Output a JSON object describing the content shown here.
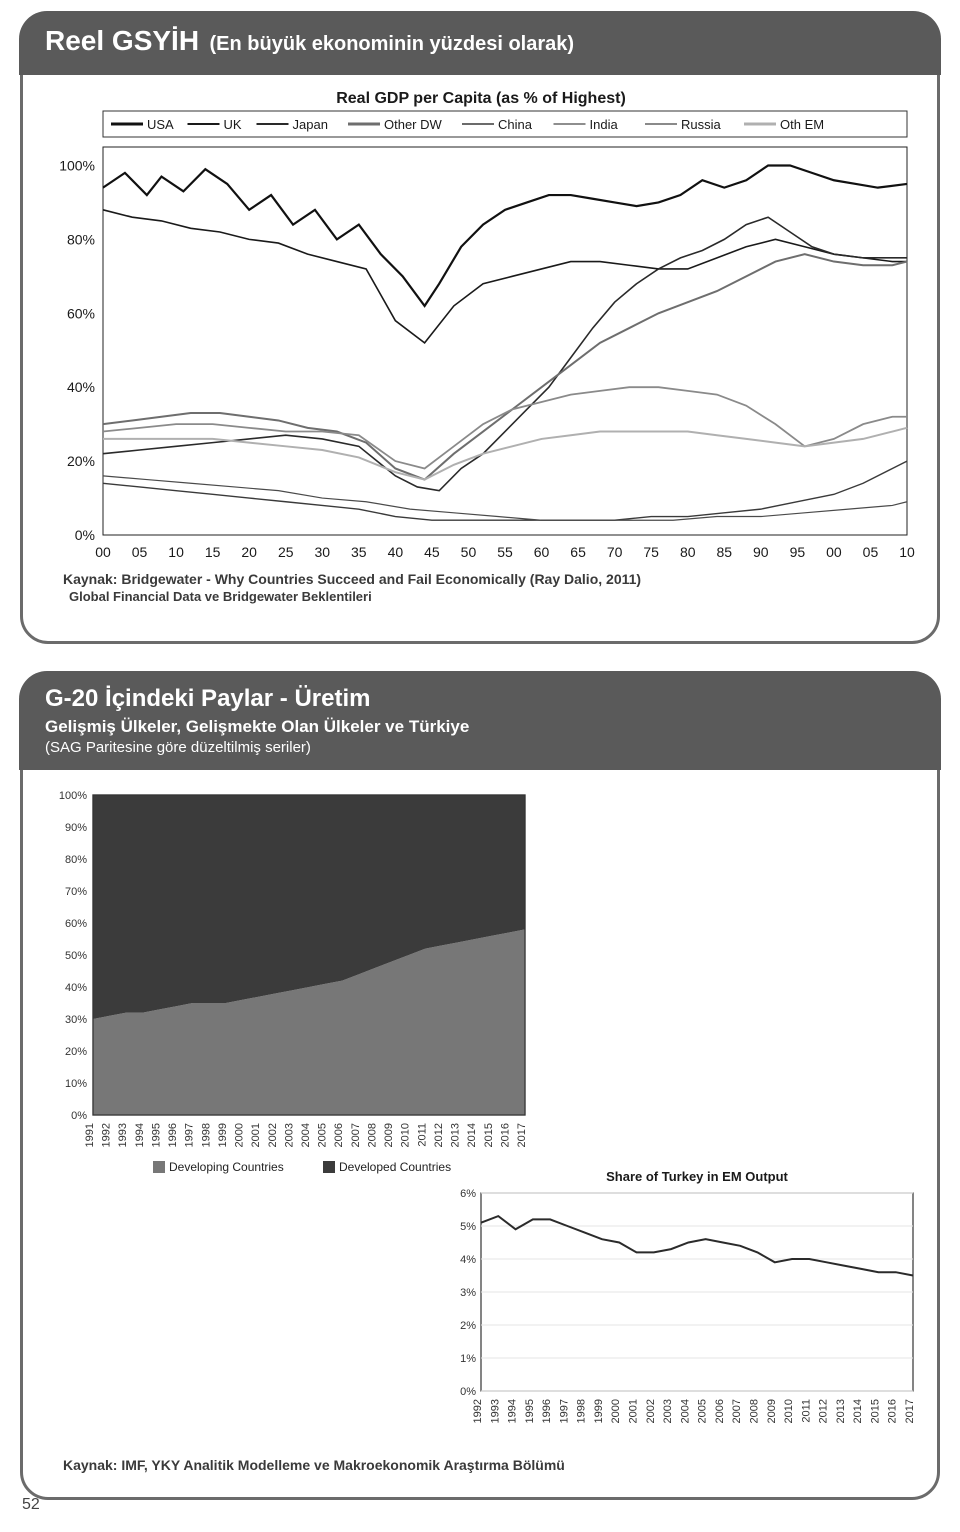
{
  "panel1": {
    "title_main": "Reel GSYİH",
    "title_paren": "(En büyük ekonominin yüzdesi olarak)",
    "chart_title": "Real GDP per Capita (as % of Highest)",
    "legend": [
      "USA",
      "UK",
      "Japan",
      "Other DW",
      "China",
      "India",
      "Russia",
      "Oth EM"
    ],
    "y_ticks": [
      "100%",
      "80%",
      "60%",
      "40%",
      "20%",
      "0%"
    ],
    "x_ticks": [
      "00",
      "05",
      "10",
      "15",
      "20",
      "25",
      "30",
      "35",
      "40",
      "45",
      "50",
      "55",
      "60",
      "65",
      "70",
      "75",
      "80",
      "85",
      "90",
      "95",
      "00",
      "05",
      "10"
    ],
    "ylim": [
      0,
      105
    ],
    "xlim": [
      0,
      110
    ],
    "series": {
      "USA": {
        "color": "#111111",
        "w": 2.2,
        "dash": "",
        "pts": [
          [
            0,
            94
          ],
          [
            3,
            98
          ],
          [
            6,
            92
          ],
          [
            8,
            97
          ],
          [
            11,
            93
          ],
          [
            14,
            99
          ],
          [
            17,
            95
          ],
          [
            20,
            88
          ],
          [
            23,
            92
          ],
          [
            26,
            84
          ],
          [
            29,
            88
          ],
          [
            32,
            80
          ],
          [
            35,
            84
          ],
          [
            38,
            76
          ],
          [
            41,
            70
          ],
          [
            44,
            62
          ],
          [
            46,
            68
          ],
          [
            49,
            78
          ],
          [
            52,
            84
          ],
          [
            55,
            88
          ],
          [
            58,
            90
          ],
          [
            61,
            92
          ],
          [
            64,
            92
          ],
          [
            67,
            91
          ],
          [
            70,
            90
          ],
          [
            73,
            89
          ],
          [
            76,
            90
          ],
          [
            79,
            92
          ],
          [
            82,
            96
          ],
          [
            85,
            94
          ],
          [
            88,
            96
          ],
          [
            91,
            100
          ],
          [
            94,
            100
          ],
          [
            97,
            98
          ],
          [
            100,
            96
          ],
          [
            103,
            95
          ],
          [
            106,
            94
          ],
          [
            110,
            95
          ]
        ]
      },
      "UK": {
        "color": "#1a1a1a",
        "w": 1.6,
        "dash": "",
        "pts": [
          [
            0,
            88
          ],
          [
            4,
            86
          ],
          [
            8,
            85
          ],
          [
            12,
            83
          ],
          [
            16,
            82
          ],
          [
            20,
            80
          ],
          [
            24,
            79
          ],
          [
            28,
            76
          ],
          [
            32,
            74
          ],
          [
            36,
            72
          ],
          [
            40,
            58
          ],
          [
            44,
            52
          ],
          [
            48,
            62
          ],
          [
            52,
            68
          ],
          [
            56,
            70
          ],
          [
            60,
            72
          ],
          [
            64,
            74
          ],
          [
            68,
            74
          ],
          [
            72,
            73
          ],
          [
            76,
            72
          ],
          [
            80,
            72
          ],
          [
            84,
            75
          ],
          [
            88,
            78
          ],
          [
            92,
            80
          ],
          [
            96,
            78
          ],
          [
            100,
            76
          ],
          [
            104,
            75
          ],
          [
            108,
            74
          ],
          [
            110,
            74
          ]
        ]
      },
      "Japan": {
        "color": "#2a2a2a",
        "w": 1.6,
        "dash": "",
        "pts": [
          [
            0,
            22
          ],
          [
            5,
            23
          ],
          [
            10,
            24
          ],
          [
            15,
            25
          ],
          [
            20,
            26
          ],
          [
            25,
            27
          ],
          [
            30,
            26
          ],
          [
            35,
            24
          ],
          [
            40,
            16
          ],
          [
            43,
            13
          ],
          [
            46,
            12
          ],
          [
            49,
            18
          ],
          [
            52,
            22
          ],
          [
            55,
            28
          ],
          [
            58,
            34
          ],
          [
            61,
            40
          ],
          [
            64,
            48
          ],
          [
            67,
            56
          ],
          [
            70,
            63
          ],
          [
            73,
            68
          ],
          [
            76,
            72
          ],
          [
            79,
            75
          ],
          [
            82,
            77
          ],
          [
            85,
            80
          ],
          [
            88,
            84
          ],
          [
            91,
            86
          ],
          [
            94,
            82
          ],
          [
            97,
            78
          ],
          [
            100,
            76
          ],
          [
            104,
            75
          ],
          [
            108,
            75
          ],
          [
            110,
            75
          ]
        ]
      },
      "OtherDW": {
        "color": "#6e6e6e",
        "w": 2.0,
        "dash": "",
        "pts": [
          [
            0,
            30
          ],
          [
            4,
            31
          ],
          [
            8,
            32
          ],
          [
            12,
            33
          ],
          [
            16,
            33
          ],
          [
            20,
            32
          ],
          [
            24,
            31
          ],
          [
            28,
            29
          ],
          [
            32,
            28
          ],
          [
            36,
            25
          ],
          [
            40,
            18
          ],
          [
            44,
            15
          ],
          [
            48,
            22
          ],
          [
            52,
            28
          ],
          [
            56,
            34
          ],
          [
            60,
            40
          ],
          [
            64,
            46
          ],
          [
            68,
            52
          ],
          [
            72,
            56
          ],
          [
            76,
            60
          ],
          [
            80,
            63
          ],
          [
            84,
            66
          ],
          [
            88,
            70
          ],
          [
            92,
            74
          ],
          [
            96,
            76
          ],
          [
            100,
            74
          ],
          [
            104,
            73
          ],
          [
            108,
            73
          ],
          [
            110,
            74
          ]
        ]
      },
      "China": {
        "color": "#3a3a3a",
        "w": 1.4,
        "dash": "",
        "pts": [
          [
            0,
            14
          ],
          [
            5,
            13
          ],
          [
            10,
            12
          ],
          [
            15,
            11
          ],
          [
            20,
            10
          ],
          [
            25,
            9
          ],
          [
            30,
            8
          ],
          [
            35,
            7
          ],
          [
            40,
            5
          ],
          [
            45,
            4
          ],
          [
            50,
            4
          ],
          [
            55,
            4
          ],
          [
            60,
            4
          ],
          [
            65,
            4
          ],
          [
            70,
            4
          ],
          [
            75,
            5
          ],
          [
            80,
            5
          ],
          [
            85,
            6
          ],
          [
            90,
            7
          ],
          [
            95,
            9
          ],
          [
            100,
            11
          ],
          [
            104,
            14
          ],
          [
            108,
            18
          ],
          [
            110,
            20
          ]
        ]
      },
      "India": {
        "color": "#4a4a4a",
        "w": 1.2,
        "dash": "",
        "pts": [
          [
            0,
            16
          ],
          [
            6,
            15
          ],
          [
            12,
            14
          ],
          [
            18,
            13
          ],
          [
            24,
            12
          ],
          [
            30,
            10
          ],
          [
            36,
            9
          ],
          [
            42,
            7
          ],
          [
            48,
            6
          ],
          [
            54,
            5
          ],
          [
            60,
            4
          ],
          [
            66,
            4
          ],
          [
            72,
            4
          ],
          [
            78,
            4
          ],
          [
            84,
            5
          ],
          [
            90,
            5
          ],
          [
            96,
            6
          ],
          [
            102,
            7
          ],
          [
            108,
            8
          ],
          [
            110,
            9
          ]
        ]
      },
      "Russia": {
        "color": "#8a8a8a",
        "w": 1.8,
        "dash": "",
        "pts": [
          [
            0,
            28
          ],
          [
            5,
            29
          ],
          [
            10,
            30
          ],
          [
            15,
            30
          ],
          [
            20,
            29
          ],
          [
            25,
            28
          ],
          [
            30,
            28
          ],
          [
            35,
            27
          ],
          [
            40,
            20
          ],
          [
            44,
            18
          ],
          [
            48,
            24
          ],
          [
            52,
            30
          ],
          [
            56,
            34
          ],
          [
            60,
            36
          ],
          [
            64,
            38
          ],
          [
            68,
            39
          ],
          [
            72,
            40
          ],
          [
            76,
            40
          ],
          [
            80,
            39
          ],
          [
            84,
            38
          ],
          [
            88,
            35
          ],
          [
            92,
            30
          ],
          [
            96,
            24
          ],
          [
            100,
            26
          ],
          [
            104,
            30
          ],
          [
            108,
            32
          ],
          [
            110,
            32
          ]
        ]
      },
      "OthEM": {
        "color": "#b0b0b0",
        "w": 2.0,
        "dash": "",
        "pts": [
          [
            0,
            26
          ],
          [
            5,
            26
          ],
          [
            10,
            26
          ],
          [
            15,
            26
          ],
          [
            20,
            25
          ],
          [
            25,
            24
          ],
          [
            30,
            23
          ],
          [
            35,
            21
          ],
          [
            40,
            17
          ],
          [
            44,
            15
          ],
          [
            48,
            19
          ],
          [
            52,
            22
          ],
          [
            56,
            24
          ],
          [
            60,
            26
          ],
          [
            64,
            27
          ],
          [
            68,
            28
          ],
          [
            72,
            28
          ],
          [
            76,
            28
          ],
          [
            80,
            28
          ],
          [
            84,
            27
          ],
          [
            88,
            26
          ],
          [
            92,
            25
          ],
          [
            96,
            24
          ],
          [
            100,
            25
          ],
          [
            104,
            26
          ],
          [
            108,
            28
          ],
          [
            110,
            29
          ]
        ]
      }
    },
    "source_line1": "Kaynak: Bridgewater - Why Countries Succeed and Fail Economically (Ray Dalio, 2011)",
    "source_line2": "Global Financial Data ve Bridgewater Beklentileri",
    "axis_color": "#222222",
    "grid_color": "#d0d0d0",
    "bg": "#ffffff",
    "tick_fontsize": 14,
    "title_fontsize": 16
  },
  "panel2": {
    "title": "G-20 İçindeki Paylar - Üretim",
    "sub": "Gelişmiş Ülkeler, Gelişmekte Olan Ülkeler ve Türkiye",
    "sub2": "(SAG Paritesine göre düzeltilmiş seriler)",
    "chartA": {
      "y_ticks": [
        "100%",
        "90%",
        "80%",
        "70%",
        "60%",
        "50%",
        "40%",
        "30%",
        "20%",
        "10%",
        "0%"
      ],
      "ylim": [
        0,
        100
      ],
      "x_ticks": [
        "1991",
        "1992",
        "1993",
        "1994",
        "1995",
        "1996",
        "1997",
        "1998",
        "1999",
        "2000",
        "2001",
        "2002",
        "2003",
        "2004",
        "2005",
        "2006",
        "2007",
        "2008",
        "2009",
        "2010",
        "2011",
        "2012",
        "2013",
        "2014",
        "2015",
        "2016",
        "2017"
      ],
      "developing_share": [
        30,
        31,
        32,
        32,
        33,
        34,
        35,
        35,
        35,
        36,
        37,
        38,
        39,
        40,
        41,
        42,
        44,
        46,
        48,
        50,
        52,
        53,
        54,
        55,
        56,
        57,
        58
      ],
      "colors": {
        "developing": "#777777",
        "developed": "#3b3b3b"
      },
      "legend_items": [
        "Developing Countries",
        "Developed Countries"
      ],
      "bg": "#ffffff",
      "axis_color": "#333333",
      "tick_fontsize": 11
    },
    "chartB": {
      "title": "Share of Turkey in EM Output",
      "y_ticks": [
        "6%",
        "5%",
        "4%",
        "3%",
        "2%",
        "1%",
        "0%"
      ],
      "ylim": [
        0,
        6
      ],
      "x_ticks": [
        "1992",
        "1993",
        "1994",
        "1995",
        "1996",
        "1997",
        "1998",
        "1999",
        "2000",
        "2001",
        "2002",
        "2003",
        "2004",
        "2005",
        "2006",
        "2007",
        "2008",
        "2009",
        "2010",
        "2011",
        "2012",
        "2013",
        "2014",
        "2015",
        "2016",
        "2017"
      ],
      "values": [
        5.1,
        5.3,
        4.9,
        5.2,
        5.2,
        5.0,
        4.8,
        4.6,
        4.5,
        4.2,
        4.2,
        4.3,
        4.5,
        4.6,
        4.5,
        4.4,
        4.2,
        3.9,
        4.0,
        4.0,
        3.9,
        3.8,
        3.7,
        3.6,
        3.6,
        3.5
      ],
      "line_color": "#2b2b2b",
      "w": 2,
      "bg": "#ffffff",
      "axis_color": "#333333",
      "tick_fontsize": 11,
      "title_fontsize": 13
    },
    "source": "Kaynak: IMF, YKY Analitik Modelleme ve Makroekonomik Araştırma Bölümü"
  },
  "page_number": "52"
}
